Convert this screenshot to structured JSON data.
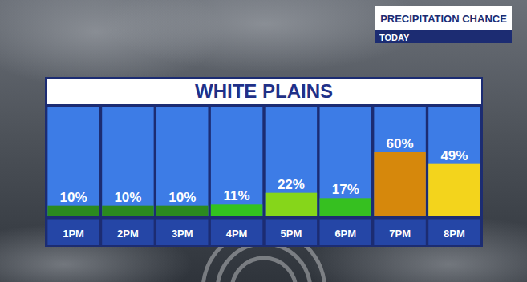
{
  "chart_data": {
    "type": "bar",
    "title": "PRECIPITATION CHANCE",
    "subtitle": "TODAY",
    "location": "WHITE PLAINS",
    "categories": [
      "1PM",
      "2PM",
      "3PM",
      "4PM",
      "5PM",
      "6PM",
      "7PM",
      "8PM"
    ],
    "values": [
      10,
      10,
      10,
      11,
      22,
      17,
      60,
      49
    ],
    "value_labels": [
      "10%",
      "10%",
      "10%",
      "11%",
      "22%",
      "17%",
      "60%",
      "49%"
    ],
    "colors": [
      "#2b8a1f",
      "#2b8a1f",
      "#2b8a1f",
      "#33c21f",
      "#86d61a",
      "#36c020",
      "#d6880c",
      "#f3d41c"
    ],
    "data_labels": true
  }
}
